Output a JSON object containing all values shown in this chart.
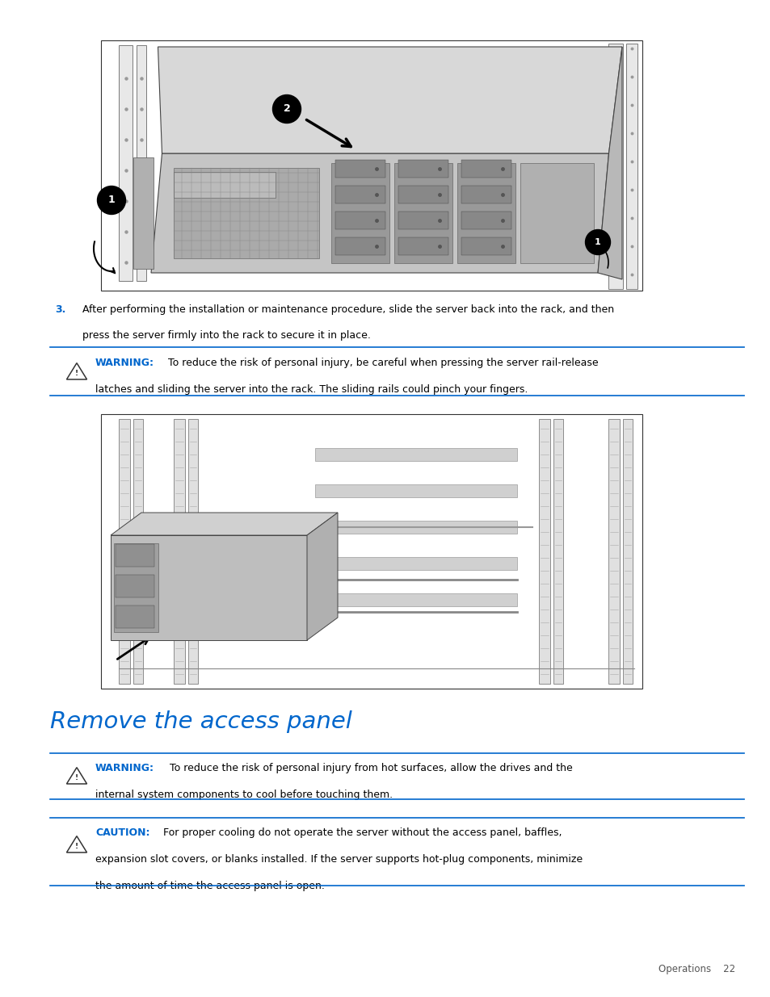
{
  "bg_color": "#ffffff",
  "page_width": 9.54,
  "page_height": 12.35,
  "dpi": 100,
  "text_color": "#000000",
  "blue_color": "#0066cc",
  "line_color": "#0066cc",
  "step3_number": "3.",
  "step3_line1": "After performing the installation or maintenance procedure, slide the server back into the rack, and then",
  "step3_line2": "press the server firmly into the rack to secure it in place.",
  "warning1_label": "WARNING:",
  "warning1_line1": "To reduce the risk of personal injury, be careful when pressing the server rail-release",
  "warning1_line2": "latches and sliding the server into the rack. The sliding rails could pinch your fingers.",
  "section_title": "Remove the access panel",
  "warning2_label": "WARNING:",
  "warning2_line1": "To reduce the risk of personal injury from hot surfaces, allow the drives and the",
  "warning2_line2": "internal system components to cool before touching them.",
  "caution_label": "CAUTION:",
  "caution_line1": "For proper cooling do not operate the server without the access panel, baffles,",
  "caution_line2": "expansion slot covers, or blanks installed. If the server supports hot-plug components, minimize",
  "caution_line3": "the amount of time the access panel is open.",
  "footer_text": "Operations    22",
  "font_size_body": 9.0,
  "font_size_label": 9.0,
  "font_size_step_num": 9.0,
  "font_size_title": 21,
  "font_size_footer": 8.5
}
